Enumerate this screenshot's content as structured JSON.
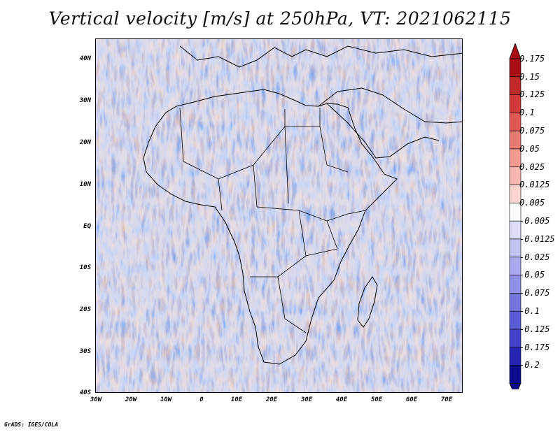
{
  "title": "Vertical velocity [m/s] at 250hPa, VT: 2021062115",
  "credit": "GrADS: IGES/COLA",
  "latitude_labels": [
    "40N",
    "30N",
    "20N",
    "10N",
    "EQ",
    "10S",
    "20S",
    "30S",
    "40S"
  ],
  "longitude_labels": [
    "30W",
    "20W",
    "10W",
    "0",
    "10E",
    "20E",
    "30E",
    "40E",
    "50E",
    "60E",
    "70E"
  ],
  "colorbar": {
    "labels": [
      "0.175",
      "0.15",
      "0.125",
      "0.1",
      "0.075",
      "0.05",
      "0.025",
      "0.0125",
      "0.005",
      "-0.005",
      "-0.0125",
      "-0.025",
      "-0.05",
      "-0.075",
      "-0.1",
      "-0.125",
      "-0.175",
      "-0.2"
    ],
    "colors": [
      "#a50f15",
      "#c0282a",
      "#d33a3a",
      "#e05a55",
      "#e97a72",
      "#f09b92",
      "#f5b8b0",
      "#fad4cf",
      "#ffffff",
      "#dcdcf8",
      "#c4c4f3",
      "#a9a9ee",
      "#8f8fe6",
      "#7575de",
      "#5b5bd6",
      "#4040c8",
      "#2424b0",
      "#0a0a8c"
    ]
  }
}
